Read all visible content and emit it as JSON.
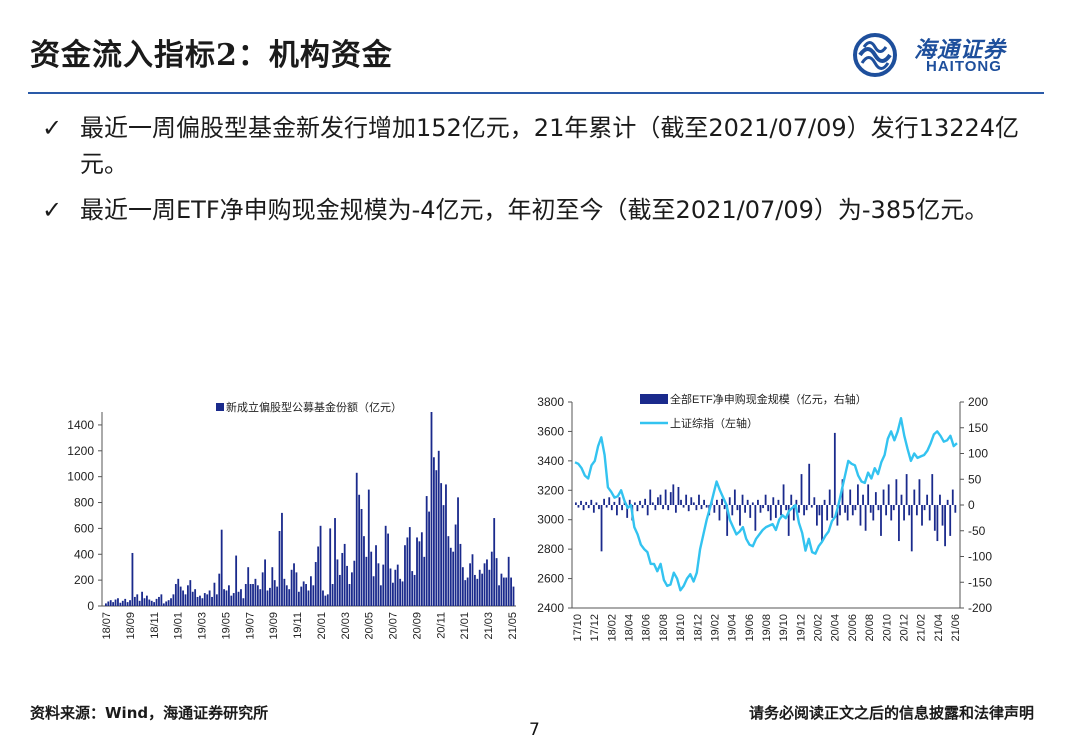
{
  "header": {
    "title": "资金流入指标2：机构资金",
    "logo_cn": "海通证券",
    "logo_en": "HAITONG"
  },
  "bullets": [
    {
      "check": "✓",
      "text": "最近一周偏股型基金新发行增加152亿元，21年累计（截至2021/07/09）发行13224亿元。"
    },
    {
      "check": "✓",
      "text": "最近一周ETF净申购现金规模为-4亿元，年初至今（截至2021/07/09）为-385亿元。"
    }
  ],
  "colors": {
    "navy": "#1a2a8c",
    "cyan": "#33c3f0",
    "rule": "#2a5aa8",
    "brand": "#1e4f9c"
  },
  "chart_data": [
    {
      "type": "bar",
      "title": "",
      "legend": [
        "新成立偏股型公募基金份额（亿元）"
      ],
      "legend_position": "top-center",
      "x_tick_labels": [
        "18/07",
        "18/09",
        "18/11",
        "19/01",
        "19/03",
        "19/05",
        "19/07",
        "19/09",
        "19/11",
        "20/01",
        "20/03",
        "20/05",
        "20/07",
        "20/09",
        "20/11",
        "21/01",
        "21/03",
        "21/05"
      ],
      "ylim": [
        0,
        1500
      ],
      "y_ticks": [
        0,
        200,
        400,
        600,
        800,
        1000,
        1200,
        1400
      ],
      "series": [
        {
          "name": "新成立偏股型公募基金份额（亿元）",
          "values": [
            20,
            35,
            45,
            30,
            50,
            60,
            25,
            40,
            55,
            30,
            45,
            410,
            70,
            90,
            40,
            110,
            60,
            80,
            50,
            40,
            30,
            55,
            70,
            90,
            20,
            35,
            45,
            60,
            90,
            170,
            210,
            150,
            120,
            90,
            160,
            200,
            110,
            130,
            70,
            80,
            60,
            100,
            90,
            120,
            70,
            180,
            90,
            250,
            590,
            130,
            120,
            160,
            80,
            100,
            390,
            110,
            130,
            60,
            170,
            300,
            170,
            170,
            210,
            160,
            130,
            260,
            360,
            120,
            140,
            300,
            200,
            150,
            580,
            720,
            210,
            160,
            130,
            280,
            330,
            260,
            110,
            150,
            190,
            170,
            120,
            230,
            160,
            340,
            460,
            620,
            120,
            80,
            90,
            600,
            170,
            680,
            360,
            240,
            410,
            480,
            310,
            170,
            260,
            350,
            1030,
            860,
            750,
            540,
            380,
            900,
            420,
            230,
            470,
            330,
            160,
            320,
            620,
            560,
            290,
            180,
            280,
            320,
            210,
            190,
            470,
            530,
            610,
            270,
            240,
            530,
            500,
            570,
            380,
            850,
            730,
            1500,
            1150,
            1050,
            1200,
            950,
            780,
            940,
            540,
            450,
            420,
            630,
            840,
            480,
            300,
            200,
            220,
            330,
            400,
            240,
            210,
            280,
            250,
            330,
            360,
            280,
            420,
            680,
            370,
            160,
            250,
            220,
            220,
            380,
            220,
            150
          ]
        }
      ]
    },
    {
      "type": "bar+line",
      "title": "",
      "legend": [
        "全部ETF净申购现金规模（亿元，右轴）",
        "上证综指（左轴）"
      ],
      "legend_position": "top-center",
      "x_tick_labels": [
        "17/10",
        "17/12",
        "18/02",
        "18/04",
        "18/06",
        "18/08",
        "18/10",
        "18/12",
        "19/02",
        "19/04",
        "19/06",
        "19/08",
        "19/10",
        "19/12",
        "20/02",
        "20/04",
        "20/06",
        "20/08",
        "20/10",
        "20/12",
        "21/02",
        "21/04",
        "21/06"
      ],
      "left_axis": {
        "ylim": [
          2400,
          3800
        ],
        "ticks": [
          2400,
          2600,
          2800,
          3000,
          3200,
          3400,
          3600,
          3800
        ]
      },
      "right_axis": {
        "ylim": [
          -200,
          200
        ],
        "ticks": [
          -200,
          -150,
          -100,
          -50,
          0,
          50,
          100,
          150,
          200
        ]
      },
      "series": [
        {
          "name": "全部ETF净申购现金规模（亿元，右轴）",
          "axis": "right",
          "values": [
            5,
            -5,
            8,
            -10,
            6,
            -6,
            10,
            -15,
            5,
            -8,
            -90,
            12,
            -5,
            15,
            -10,
            6,
            -20,
            15,
            -10,
            8,
            -25,
            10,
            -30,
            5,
            -12,
            8,
            -6,
            12,
            -20,
            30,
            5,
            -10,
            15,
            20,
            -8,
            30,
            -10,
            25,
            40,
            -15,
            35,
            10,
            -5,
            20,
            -12,
            15,
            5,
            -10,
            20,
            -8,
            10,
            -5,
            -20,
            8,
            -15,
            10,
            -30,
            12,
            -8,
            -60,
            15,
            -20,
            30,
            -10,
            -40,
            20,
            -15,
            10,
            -25,
            5,
            -50,
            10,
            -15,
            -6,
            20,
            -12,
            -30,
            15,
            -25,
            10,
            -20,
            40,
            -10,
            -60,
            20,
            -30,
            10,
            -15,
            60,
            -20,
            -10,
            80,
            -5,
            15,
            -40,
            -20,
            -70,
            10,
            -30,
            30,
            -25,
            140,
            -40,
            -20,
            50,
            -15,
            -30,
            30,
            -20,
            -10,
            40,
            -40,
            20,
            -50,
            40,
            -15,
            -30,
            25,
            -10,
            -60,
            30,
            -20,
            40,
            -30,
            -10,
            50,
            -70,
            20,
            -30,
            60,
            -20,
            -90,
            30,
            -20,
            50,
            -40,
            -10,
            20,
            -30,
            60,
            -50,
            -70,
            20,
            -40,
            -80,
            10,
            -60,
            30,
            -15
          ]
        },
        {
          "name": "上证综指（左轴）",
          "axis": "left",
          "values": [
            3390,
            3380,
            3350,
            3300,
            3280,
            3370,
            3400,
            3500,
            3560,
            3440,
            3220,
            3190,
            3150,
            3160,
            3200,
            3130,
            3080,
            3100,
            2950,
            2900,
            2830,
            2800,
            2780,
            2700,
            2700,
            2650,
            2700,
            2590,
            2550,
            2560,
            2640,
            2600,
            2520,
            2550,
            2600,
            2630,
            2580,
            2640,
            2800,
            2900,
            3000,
            3080,
            3170,
            3260,
            3200,
            3150,
            3100,
            3000,
            2950,
            2900,
            2920,
            2950,
            2870,
            2830,
            2820,
            2870,
            2900,
            2930,
            2950,
            2960,
            2970,
            2930,
            3000,
            3030,
            3010,
            3060,
            3080,
            3100,
            2980,
            2910,
            2790,
            2870,
            2780,
            2770,
            2820,
            2850,
            2890,
            2920,
            2990,
            3020,
            3100,
            3200,
            3300,
            3400,
            3380,
            3370,
            3300,
            3260,
            3250,
            3320,
            3280,
            3350,
            3310,
            3390,
            3440,
            3550,
            3600,
            3540,
            3600,
            3690,
            3570,
            3480,
            3400,
            3450,
            3420,
            3430,
            3440,
            3470,
            3520,
            3580,
            3600,
            3570,
            3530,
            3540,
            3570,
            3500,
            3520
          ]
        }
      ]
    }
  ],
  "footer": {
    "source": "资料来源：Wind，海通证券研究所",
    "disclaimer": "请务必阅读正文之后的信息披露和法律声明",
    "page": "7"
  }
}
